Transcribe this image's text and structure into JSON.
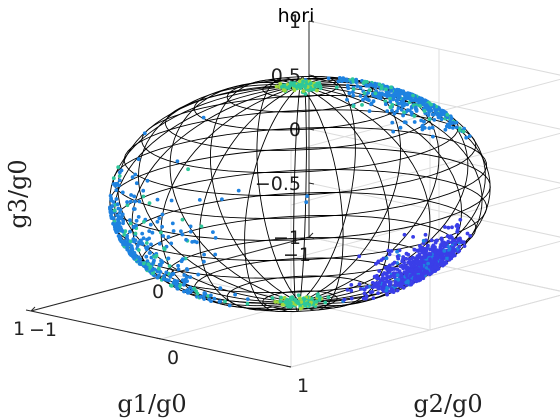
{
  "chart_data": {
    "type": "scatter",
    "title": "hori",
    "xlabel": "g1/g0",
    "ylabel": "g2/g0",
    "zlabel": "g3/g0",
    "xlim": [
      -1,
      1
    ],
    "ylim": [
      -1,
      1
    ],
    "zlim": [
      -1,
      1
    ],
    "x_ticks": [
      "−1",
      "0",
      "1"
    ],
    "y_ticks": [
      "−1",
      "0",
      "1"
    ],
    "z_ticks": [
      "−1",
      "−0.5",
      "0",
      "0.5",
      "1"
    ],
    "grid": true,
    "wireframe": "unit sphere (meridians and parallels)",
    "colormap": "parula",
    "colors": {
      "dense": "#3a3ee8",
      "mid": "#1e82e0",
      "sparse": "#2ec79a",
      "rare": "#9fd93c"
    },
    "clusters": [
      {
        "x": -0.05,
        "y": 0.85,
        "z": -0.45,
        "spread": 0.25,
        "density": "dense"
      },
      {
        "x": -0.7,
        "y": 0.0,
        "z": 0.55,
        "spread": 0.3,
        "density": "mid"
      },
      {
        "x": 0.0,
        "y": 0.0,
        "z": 0.98,
        "spread": 0.1,
        "density": "sparse"
      },
      {
        "x": 0.0,
        "y": 0.0,
        "z": -0.98,
        "spread": 0.1,
        "density": "sparse"
      },
      {
        "x": 0.65,
        "y": -0.2,
        "z": -0.2,
        "spread": 0.4,
        "density": "mid"
      }
    ]
  }
}
